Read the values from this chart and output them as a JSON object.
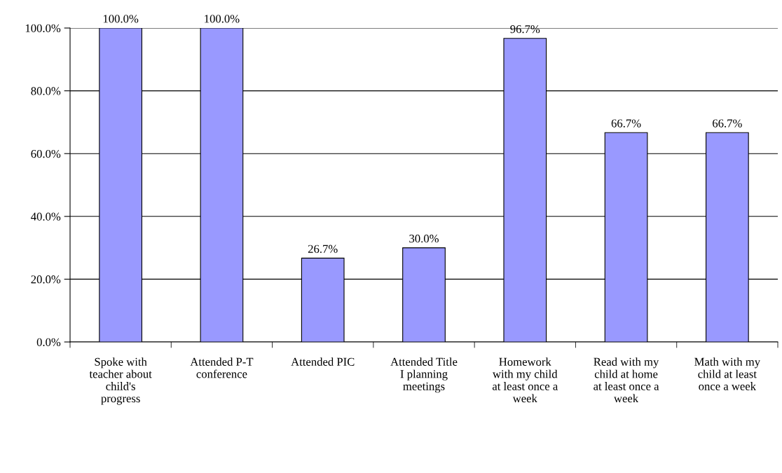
{
  "chart_data": {
    "type": "bar",
    "categories": [
      "Spoke with\nteacher about\nchild's\nprogress",
      "Attended P-T\nconference",
      "Attended PIC",
      "Attended Title\nI planning\nmeetings",
      "Homework\nwith my child\nat least once a\nweek",
      "Read with my\nchild at home\nat least once a\nweek",
      "Math with my\nchild at least\nonce a week"
    ],
    "values": [
      100.0,
      100.0,
      26.7,
      30.0,
      96.7,
      66.7,
      66.7
    ],
    "value_labels": [
      "100.0%",
      "100.0%",
      "26.7%",
      "30.0%",
      "96.7%",
      "66.7%",
      "66.7%"
    ],
    "color": "#9999ff",
    "ylim": [
      0,
      100
    ],
    "yticks": [
      {
        "value": 0,
        "label": "0.0%"
      },
      {
        "value": 20,
        "label": "20.0%"
      },
      {
        "value": 40,
        "label": "40.0%"
      },
      {
        "value": 60,
        "label": "60.0%"
      },
      {
        "value": 80,
        "label": "80.0%"
      },
      {
        "value": 100,
        "label": "100.0%"
      }
    ],
    "grid": "y",
    "legend": false
  }
}
